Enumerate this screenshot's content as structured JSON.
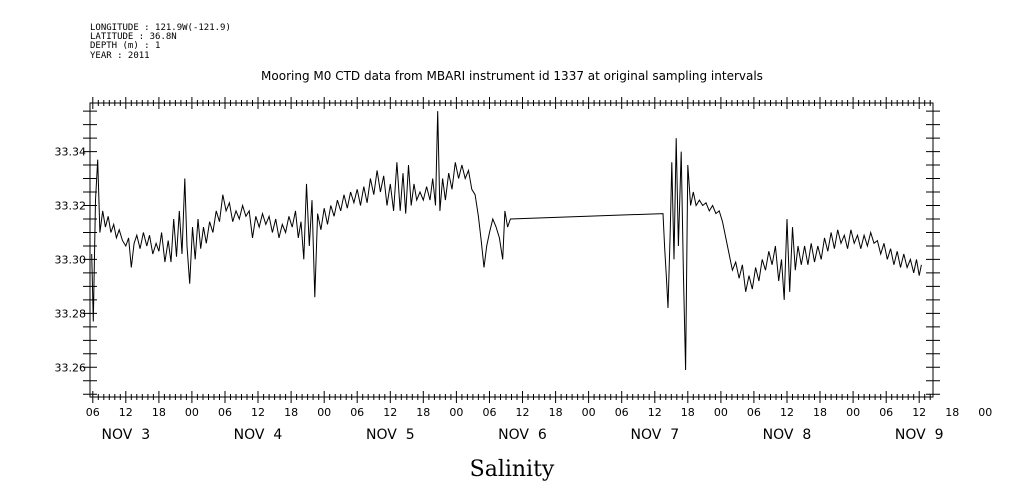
{
  "header": {
    "longitude": "LONGITUDE : 121.9W(-121.9)",
    "latitude": "LATITUDE : 36.8N",
    "depth": "DEPTH (m) : 1",
    "year": "YEAR : 2011"
  },
  "chart_data": {
    "type": "line",
    "title": "Mooring M0 CTD data from MBARI instrument id 1337 at original sampling intervals",
    "xlabel": "Salinity",
    "ylabel": "",
    "x_unit": "hours since Nov 3 00:00",
    "xlim": [
      5.5,
      158.5
    ],
    "ylim": [
      33.249,
      33.358
    ],
    "y_ticks": [
      "33.26",
      "33.28",
      "33.30",
      "33.32",
      "33.34"
    ],
    "x_hour_labels": [
      "06",
      "12",
      "18",
      "00",
      "06",
      "12",
      "18",
      "00",
      "06",
      "12",
      "18",
      "00",
      "06",
      "12",
      "18",
      "00",
      "06",
      "12",
      "18",
      "00",
      "06",
      "12",
      "18",
      "00",
      "06",
      "12",
      "18",
      "00",
      "06",
      "12"
    ],
    "x_day_labels": [
      "NOV  3",
      "NOV  4",
      "NOV  5",
      "NOV  6",
      "NOV  7",
      "NOV  8",
      "NOV  9"
    ],
    "grid": false,
    "series": [
      {
        "values": [
          [
            5.8,
            33.302
          ],
          [
            6.1,
            33.277
          ],
          [
            6.5,
            33.322
          ],
          [
            6.9,
            33.337
          ],
          [
            7.3,
            33.31
          ],
          [
            7.8,
            33.318
          ],
          [
            8.3,
            33.312
          ],
          [
            8.8,
            33.316
          ],
          [
            9.3,
            33.31
          ],
          [
            9.8,
            33.313
          ],
          [
            10.3,
            33.308
          ],
          [
            10.8,
            33.311
          ],
          [
            11.4,
            33.307
          ],
          [
            12.0,
            33.305
          ],
          [
            12.5,
            33.308
          ],
          [
            13.0,
            33.297
          ],
          [
            13.5,
            33.306
          ],
          [
            14.0,
            33.309
          ],
          [
            14.6,
            33.304
          ],
          [
            15.2,
            33.31
          ],
          [
            15.8,
            33.305
          ],
          [
            16.3,
            33.309
          ],
          [
            16.9,
            33.302
          ],
          [
            17.5,
            33.306
          ],
          [
            18.0,
            33.303
          ],
          [
            18.5,
            33.31
          ],
          [
            19.1,
            33.299
          ],
          [
            19.7,
            33.307
          ],
          [
            20.2,
            33.299
          ],
          [
            20.7,
            33.315
          ],
          [
            21.2,
            33.301
          ],
          [
            21.7,
            33.318
          ],
          [
            22.2,
            33.302
          ],
          [
            22.7,
            33.33
          ],
          [
            23.1,
            33.305
          ],
          [
            23.6,
            33.291
          ],
          [
            24.1,
            33.312
          ],
          [
            24.6,
            33.3
          ],
          [
            25.1,
            33.315
          ],
          [
            25.6,
            33.304
          ],
          [
            26.1,
            33.312
          ],
          [
            26.6,
            33.306
          ],
          [
            27.2,
            33.314
          ],
          [
            27.8,
            33.31
          ],
          [
            28.4,
            33.318
          ],
          [
            29.0,
            33.314
          ],
          [
            29.6,
            33.324
          ],
          [
            30.2,
            33.318
          ],
          [
            30.8,
            33.321
          ],
          [
            31.4,
            33.314
          ],
          [
            32.0,
            33.318
          ],
          [
            32.6,
            33.315
          ],
          [
            33.2,
            33.32
          ],
          [
            33.8,
            33.316
          ],
          [
            34.4,
            33.318
          ],
          [
            35.0,
            33.308
          ],
          [
            35.6,
            33.316
          ],
          [
            36.2,
            33.312
          ],
          [
            36.8,
            33.317
          ],
          [
            37.4,
            33.313
          ],
          [
            38.0,
            33.316
          ],
          [
            38.6,
            33.31
          ],
          [
            39.2,
            33.315
          ],
          [
            39.8,
            33.308
          ],
          [
            40.4,
            33.313
          ],
          [
            41.0,
            33.31
          ],
          [
            41.6,
            33.316
          ],
          [
            42.2,
            33.312
          ],
          [
            42.8,
            33.318
          ],
          [
            43.3,
            33.308
          ],
          [
            43.8,
            33.314
          ],
          [
            44.3,
            33.3
          ],
          [
            44.8,
            33.328
          ],
          [
            45.3,
            33.305
          ],
          [
            45.8,
            33.322
          ],
          [
            46.3,
            33.286
          ],
          [
            46.8,
            33.317
          ],
          [
            47.4,
            33.311
          ],
          [
            48.0,
            33.319
          ],
          [
            48.6,
            33.313
          ],
          [
            49.2,
            33.32
          ],
          [
            49.8,
            33.316
          ],
          [
            50.4,
            33.322
          ],
          [
            51.0,
            33.318
          ],
          [
            51.6,
            33.324
          ],
          [
            52.2,
            33.319
          ],
          [
            52.8,
            33.325
          ],
          [
            53.4,
            33.321
          ],
          [
            54.0,
            33.326
          ],
          [
            54.6,
            33.32
          ],
          [
            55.2,
            33.327
          ],
          [
            55.8,
            33.321
          ],
          [
            56.4,
            33.33
          ],
          [
            57.0,
            33.324
          ],
          [
            57.6,
            33.333
          ],
          [
            58.2,
            33.325
          ],
          [
            58.8,
            33.331
          ],
          [
            59.4,
            33.32
          ],
          [
            60.0,
            33.328
          ],
          [
            60.6,
            33.318
          ],
          [
            61.2,
            33.336
          ],
          [
            61.8,
            33.318
          ],
          [
            62.3,
            33.332
          ],
          [
            62.8,
            33.317
          ],
          [
            63.3,
            33.335
          ],
          [
            63.8,
            33.32
          ],
          [
            64.3,
            33.328
          ],
          [
            64.8,
            33.322
          ],
          [
            65.4,
            33.325
          ],
          [
            66.0,
            33.322
          ],
          [
            66.6,
            33.327
          ],
          [
            67.2,
            33.322
          ],
          [
            67.7,
            33.33
          ],
          [
            68.2,
            33.32
          ],
          [
            68.6,
            33.355
          ],
          [
            69.0,
            33.318
          ],
          [
            69.5,
            33.33
          ],
          [
            70.0,
            33.322
          ],
          [
            70.6,
            33.332
          ],
          [
            71.2,
            33.326
          ],
          [
            71.8,
            33.336
          ],
          [
            72.4,
            33.33
          ],
          [
            73.0,
            33.335
          ],
          [
            73.6,
            33.33
          ],
          [
            74.2,
            33.333
          ],
          [
            74.8,
            33.326
          ],
          [
            75.4,
            33.324
          ],
          [
            76.0,
            33.316
          ],
          [
            76.5,
            33.307
          ],
          [
            77.0,
            33.297
          ],
          [
            77.5,
            33.305
          ],
          [
            78.0,
            33.31
          ],
          [
            78.6,
            33.315
          ],
          [
            79.2,
            33.312
          ],
          [
            79.8,
            33.308
          ],
          [
            80.4,
            33.3
          ],
          [
            80.8,
            33.318
          ],
          [
            81.3,
            33.312
          ],
          [
            81.8,
            33.315
          ],
          [
            109.5,
            33.317
          ],
          [
            109.8,
            33.304
          ],
          [
            110.1,
            33.294
          ],
          [
            110.4,
            33.282
          ],
          [
            110.8,
            33.31
          ],
          [
            111.1,
            33.336
          ],
          [
            111.5,
            33.3
          ],
          [
            111.9,
            33.345
          ],
          [
            112.3,
            33.305
          ],
          [
            112.8,
            33.34
          ],
          [
            113.2,
            33.295
          ],
          [
            113.6,
            33.259
          ],
          [
            114.0,
            33.335
          ],
          [
            114.5,
            33.32
          ],
          [
            115.0,
            33.325
          ],
          [
            115.5,
            33.32
          ],
          [
            116.1,
            33.322
          ],
          [
            116.7,
            33.32
          ],
          [
            117.3,
            33.321
          ],
          [
            117.9,
            33.318
          ],
          [
            118.5,
            33.32
          ],
          [
            119.1,
            33.317
          ],
          [
            119.7,
            33.318
          ],
          [
            120.3,
            33.314
          ],
          [
            120.9,
            33.308
          ],
          [
            121.5,
            33.302
          ],
          [
            122.1,
            33.296
          ],
          [
            122.7,
            33.299
          ],
          [
            123.3,
            33.293
          ],
          [
            123.9,
            33.298
          ],
          [
            124.5,
            33.288
          ],
          [
            125.1,
            33.294
          ],
          [
            125.7,
            33.289
          ],
          [
            126.3,
            33.297
          ],
          [
            126.9,
            33.292
          ],
          [
            127.5,
            33.3
          ],
          [
            128.1,
            33.296
          ],
          [
            128.7,
            33.303
          ],
          [
            129.3,
            33.298
          ],
          [
            129.9,
            33.305
          ],
          [
            130.5,
            33.292
          ],
          [
            131.0,
            33.3
          ],
          [
            131.5,
            33.285
          ],
          [
            132.0,
            33.315
          ],
          [
            132.5,
            33.288
          ],
          [
            133.0,
            33.312
          ],
          [
            133.5,
            33.296
          ],
          [
            134.0,
            33.305
          ],
          [
            134.6,
            33.298
          ],
          [
            135.2,
            33.305
          ],
          [
            135.8,
            33.298
          ],
          [
            136.4,
            33.306
          ],
          [
            137.0,
            33.299
          ],
          [
            137.6,
            33.305
          ],
          [
            138.2,
            33.3
          ],
          [
            138.8,
            33.308
          ],
          [
            139.4,
            33.303
          ],
          [
            140.0,
            33.31
          ],
          [
            140.6,
            33.304
          ],
          [
            141.2,
            33.311
          ],
          [
            141.8,
            33.306
          ],
          [
            142.4,
            33.309
          ],
          [
            143.0,
            33.304
          ],
          [
            143.6,
            33.311
          ],
          [
            144.2,
            33.306
          ],
          [
            144.8,
            33.309
          ],
          [
            145.4,
            33.304
          ],
          [
            146.0,
            33.309
          ],
          [
            146.6,
            33.305
          ],
          [
            147.2,
            33.31
          ],
          [
            147.8,
            33.306
          ],
          [
            148.4,
            33.307
          ],
          [
            149.0,
            33.302
          ],
          [
            149.6,
            33.306
          ],
          [
            150.2,
            33.3
          ],
          [
            150.8,
            33.304
          ],
          [
            151.4,
            33.298
          ],
          [
            152.0,
            33.303
          ],
          [
            152.6,
            33.297
          ],
          [
            153.2,
            33.302
          ],
          [
            153.8,
            33.297
          ],
          [
            154.4,
            33.3
          ],
          [
            155.0,
            33.295
          ],
          [
            155.5,
            33.3
          ],
          [
            156.0,
            33.294
          ],
          [
            156.4,
            33.298
          ]
        ]
      }
    ]
  }
}
